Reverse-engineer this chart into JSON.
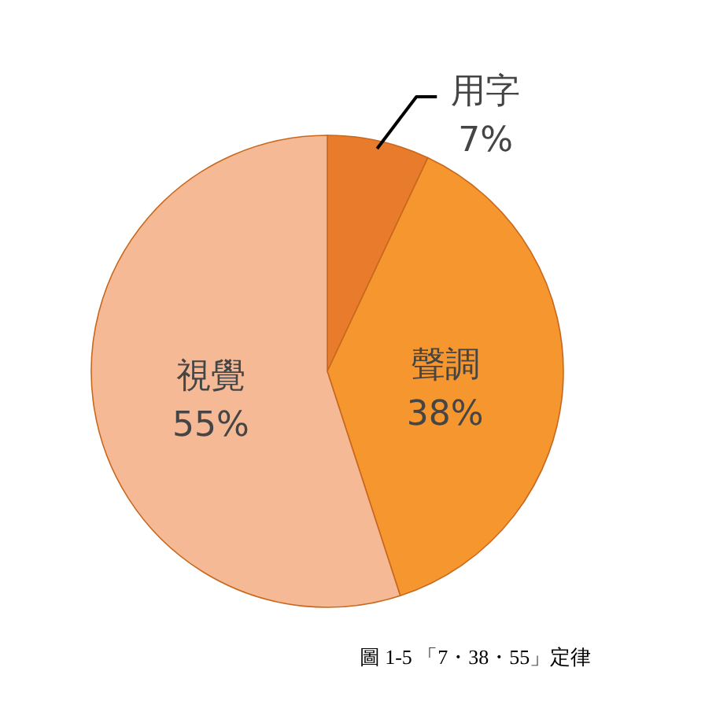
{
  "chart_data": {
    "type": "pie",
    "categories": [
      "用字",
      "聲調",
      "視覺"
    ],
    "values": [
      7,
      38,
      55
    ],
    "colors": [
      "#e87c2c",
      "#f5962f",
      "#f6b996"
    ],
    "value_labels": [
      "7%",
      "38%",
      "55%"
    ],
    "annotations": [
      "圖 1-5 「7・38・55」定律"
    ]
  }
}
